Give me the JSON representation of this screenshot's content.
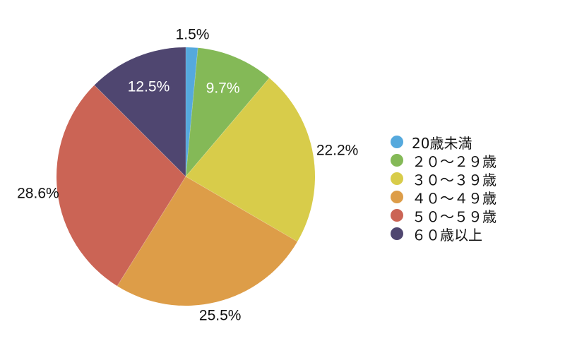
{
  "chart_data": {
    "type": "pie",
    "slices": [
      {
        "label": "20歳未満",
        "value": 1.5,
        "value_label": "1.5%",
        "color": "#55A9DD"
      },
      {
        "label": "２０～２９歳",
        "value": 9.7,
        "value_label": "9.7%",
        "color": "#84B957"
      },
      {
        "label": "３０～３９歳",
        "value": 22.2,
        "value_label": "22.2%",
        "color": "#D8CC4A"
      },
      {
        "label": "４０～４９歳",
        "value": 25.5,
        "value_label": "25.5%",
        "color": "#DD9D48"
      },
      {
        "label": "５０～５９歳",
        "value": 28.6,
        "value_label": "28.6%",
        "color": "#CB6455"
      },
      {
        "label": "６０歳以上",
        "value": 12.5,
        "value_label": "12.5%",
        "color": "#4F4670"
      }
    ],
    "legend_position": "right",
    "start_angle": "top",
    "direction": "clockwise"
  }
}
